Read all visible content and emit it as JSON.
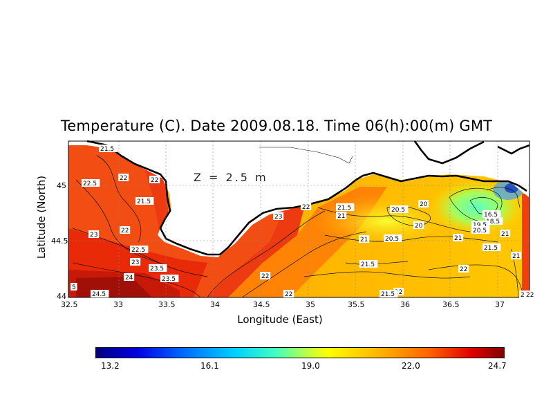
{
  "title": "Temperature (C). Date 2009.08.18. Time 06(h):00(m) GMT",
  "depth_label": "Z = 2.5 m",
  "y_axis_label": "Latitude (North)",
  "x_axis_label": "Longitude (East)",
  "x_ticks": [
    "32.5",
    "33",
    "33.5",
    "34",
    "34.5",
    "35",
    "35.5",
    "36",
    "36.5",
    "37"
  ],
  "y_ticks": [
    "45",
    "44.5",
    "44"
  ],
  "colorbar": {
    "labels": [
      "13.2",
      "16.1",
      "19.0",
      "22.0",
      "24.7"
    ],
    "min": 13.2,
    "max": 24.7,
    "colors": [
      "#000080",
      "#0070ff",
      "#00d0ff",
      "#c0ff40",
      "#ffff00",
      "#ff6000",
      "#e00000",
      "#800000"
    ]
  },
  "contour_labels": [
    "21.5",
    "22.5",
    "22",
    "22",
    "21.5",
    "23",
    "22",
    "22.5",
    "23",
    "23.5",
    "24",
    "23.5",
    "24.5",
    "5",
    "22",
    "23",
    "22",
    "22",
    "21.5",
    "21",
    "20.5",
    "20",
    "20",
    "20.5",
    "21",
    "21",
    "21.5",
    "22",
    "21.5",
    "22",
    "16.5",
    "18.5",
    "19.5",
    "20.5",
    "21",
    "21.5",
    "21",
    "21.5",
    "22"
  ],
  "map_extent": {
    "lon_min": 32.5,
    "lon_max": 37.3,
    "lat_min": 44.0,
    "lat_max": 45.4
  }
}
